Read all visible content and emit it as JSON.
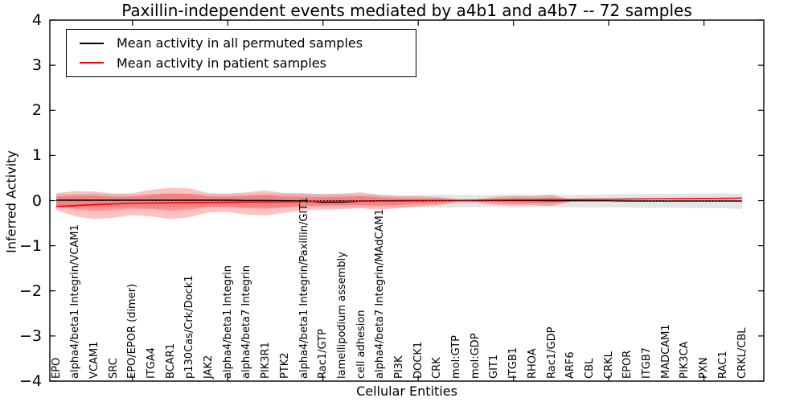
{
  "title": "Paxillin-independent events mediated by a4b1 and a4b7 -- 72 samples",
  "legend": {
    "items": [
      {
        "label": "Mean activity in all permuted samples",
        "color": "#000000"
      },
      {
        "label": "Mean activity in patient samples",
        "color": "#ff0000"
      }
    ]
  },
  "chart_data": {
    "type": "line",
    "title": "Paxillin-independent events mediated by a4b1 and a4b7 -- 72 samples",
    "xlabel": "Cellular Entities",
    "ylabel": "Inferred Activity",
    "ylim": [
      -4,
      4
    ],
    "yticks": [
      4,
      3,
      2,
      1,
      0,
      -1,
      -2,
      -3,
      -4
    ],
    "ytick_labels": [
      "4",
      "3",
      "2",
      "1",
      "0",
      "−1",
      "−2",
      "−3",
      "−4"
    ],
    "grid": false,
    "legend_position": "upper left",
    "x_major_tick_every": 5,
    "categories": [
      "EPO",
      "alpha4/beta1 Integrin/VCAM1",
      "VCAM1",
      "SRC",
      "EPO/EPOR (dimer)",
      "ITGA4",
      "BCAR1",
      "p130Cas/Crk/Dock1",
      "JAK2",
      "alpha4/beta1 Integrin",
      "alpha4/beta7 Integrin",
      "PIK3R1",
      "PTK2",
      "alpha4/beta1 Integrin/Paxillin/GIT1",
      "Rac1/GTP",
      "lamellipodium assembly",
      "cell adhesion",
      "alpha4/beta7 Integrin/MAdCAM1",
      "PI3K",
      "DOCK1",
      "CRK",
      "mol:GTP",
      "mol:GDP",
      "GIT1",
      "ITGB1",
      "RHOA",
      "Rac1/GDP",
      "ARF6",
      "CBL",
      "CRKL",
      "EPOR",
      "ITGB7",
      "MADCAM1",
      "PIK3CA",
      "PXN",
      "RAC1",
      "CRKL/CBL"
    ],
    "series": [
      {
        "name": "Mean activity in all permuted samples",
        "color": "#000000",
        "style": "solid",
        "values": [
          0.01,
          0.01,
          0.01,
          0.01,
          0.01,
          0.01,
          0.01,
          0.01,
          0.01,
          0.01,
          0.005,
          0.005,
          0.0,
          -0.01,
          -0.04,
          -0.035,
          -0.015,
          -0.005,
          0.0,
          0.0,
          0.0,
          0.0,
          0.0,
          0.0,
          0.0,
          0.0,
          -0.005,
          -0.005,
          -0.005,
          -0.005,
          -0.01,
          -0.01,
          -0.01,
          -0.01,
          -0.01,
          -0.01,
          -0.01
        ]
      },
      {
        "name": "Mean activity in patient samples",
        "color": "#ff0000",
        "style": "solid",
        "values": [
          -0.13,
          -0.11,
          -0.09,
          -0.075,
          -0.06,
          -0.055,
          -0.05,
          -0.045,
          -0.04,
          -0.035,
          -0.03,
          -0.028,
          -0.025,
          -0.022,
          -0.018,
          -0.015,
          -0.012,
          -0.01,
          -0.008,
          -0.005,
          0.0,
          0.004,
          0.008,
          0.01,
          0.014,
          0.018,
          0.02,
          0.024,
          0.028,
          0.03,
          0.034,
          0.038,
          0.04,
          0.044,
          0.048,
          0.05,
          0.055
        ]
      },
      {
        "name": "zero reference",
        "color": "#000000",
        "style": "dotted",
        "values": [
          0,
          0,
          0,
          0,
          0,
          0,
          0,
          0,
          0,
          0,
          0,
          0,
          0,
          0,
          0,
          0,
          0,
          0,
          0,
          0,
          0,
          0,
          0,
          0,
          0,
          0,
          0,
          0,
          0,
          0,
          0,
          0,
          0,
          0,
          0,
          0,
          0
        ]
      }
    ],
    "bands": [
      {
        "name": "permuted sample range",
        "color": "rgba(0,0,0,0.10)",
        "upper": [
          0.14,
          0.15,
          0.16,
          0.14,
          0.13,
          0.15,
          0.16,
          0.15,
          0.14,
          0.135,
          0.14,
          0.15,
          0.155,
          0.165,
          0.15,
          0.14,
          0.13,
          0.125,
          0.12,
          0.125,
          0.13,
          0.125,
          0.12,
          0.13,
          0.14,
          0.135,
          0.14,
          0.125,
          0.13,
          0.14,
          0.145,
          0.15,
          0.15,
          0.155,
          0.16,
          0.165,
          0.15
        ],
        "lower": [
          -0.15,
          -0.16,
          -0.15,
          -0.14,
          -0.15,
          -0.16,
          -0.15,
          -0.14,
          -0.15,
          -0.145,
          -0.15,
          -0.155,
          -0.15,
          -0.14,
          -0.15,
          -0.155,
          -0.15,
          -0.145,
          -0.15,
          -0.155,
          -0.155,
          -0.15,
          -0.145,
          -0.14,
          -0.15,
          -0.145,
          -0.14,
          -0.15,
          -0.155,
          -0.15,
          -0.155,
          -0.16,
          -0.155,
          -0.16,
          -0.165,
          -0.17,
          -0.19
        ]
      },
      {
        "name": "patient range outer",
        "color": "rgba(255,0,0,0.24)",
        "upper": [
          0.17,
          0.21,
          0.2,
          0.155,
          0.165,
          0.24,
          0.285,
          0.27,
          0.165,
          0.155,
          0.185,
          0.225,
          0.165,
          0.155,
          0.14,
          0.155,
          0.185,
          0.125,
          0.095,
          0.095,
          0.08,
          0.035,
          0.03,
          0.08,
          0.105,
          0.095,
          0.125,
          0.03,
          null,
          null,
          null,
          null,
          null,
          null,
          null,
          null,
          null
        ],
        "lower": [
          -0.21,
          -0.35,
          -0.41,
          -0.38,
          -0.32,
          -0.35,
          -0.41,
          -0.365,
          -0.26,
          -0.255,
          -0.31,
          -0.325,
          -0.27,
          -0.21,
          -0.2,
          -0.19,
          -0.17,
          -0.2,
          -0.17,
          -0.13,
          -0.11,
          -0.04,
          -0.04,
          -0.09,
          -0.11,
          -0.1,
          -0.12,
          -0.03,
          null,
          null,
          null,
          null,
          null,
          null,
          null,
          null,
          null
        ]
      },
      {
        "name": "patient range inner",
        "color": "rgba(255,0,0,0.24)",
        "upper": [
          0.09,
          0.115,
          0.11,
          0.085,
          0.09,
          0.13,
          0.16,
          0.15,
          0.09,
          0.085,
          0.1,
          0.125,
          0.09,
          0.085,
          0.075,
          0.085,
          0.1,
          0.07,
          0.05,
          0.05,
          0.045,
          0.02,
          0.015,
          0.045,
          0.06,
          0.05,
          0.07,
          0.015,
          null,
          null,
          null,
          null,
          null,
          null,
          null,
          null,
          null
        ],
        "lower": [
          -0.12,
          -0.19,
          -0.23,
          -0.21,
          -0.18,
          -0.19,
          -0.23,
          -0.2,
          -0.14,
          -0.14,
          -0.17,
          -0.18,
          -0.15,
          -0.115,
          -0.11,
          -0.105,
          -0.095,
          -0.11,
          -0.095,
          -0.07,
          -0.06,
          -0.02,
          -0.02,
          -0.05,
          -0.06,
          -0.055,
          -0.065,
          -0.015,
          null,
          null,
          null,
          null,
          null,
          null,
          null,
          null,
          null
        ]
      }
    ]
  }
}
